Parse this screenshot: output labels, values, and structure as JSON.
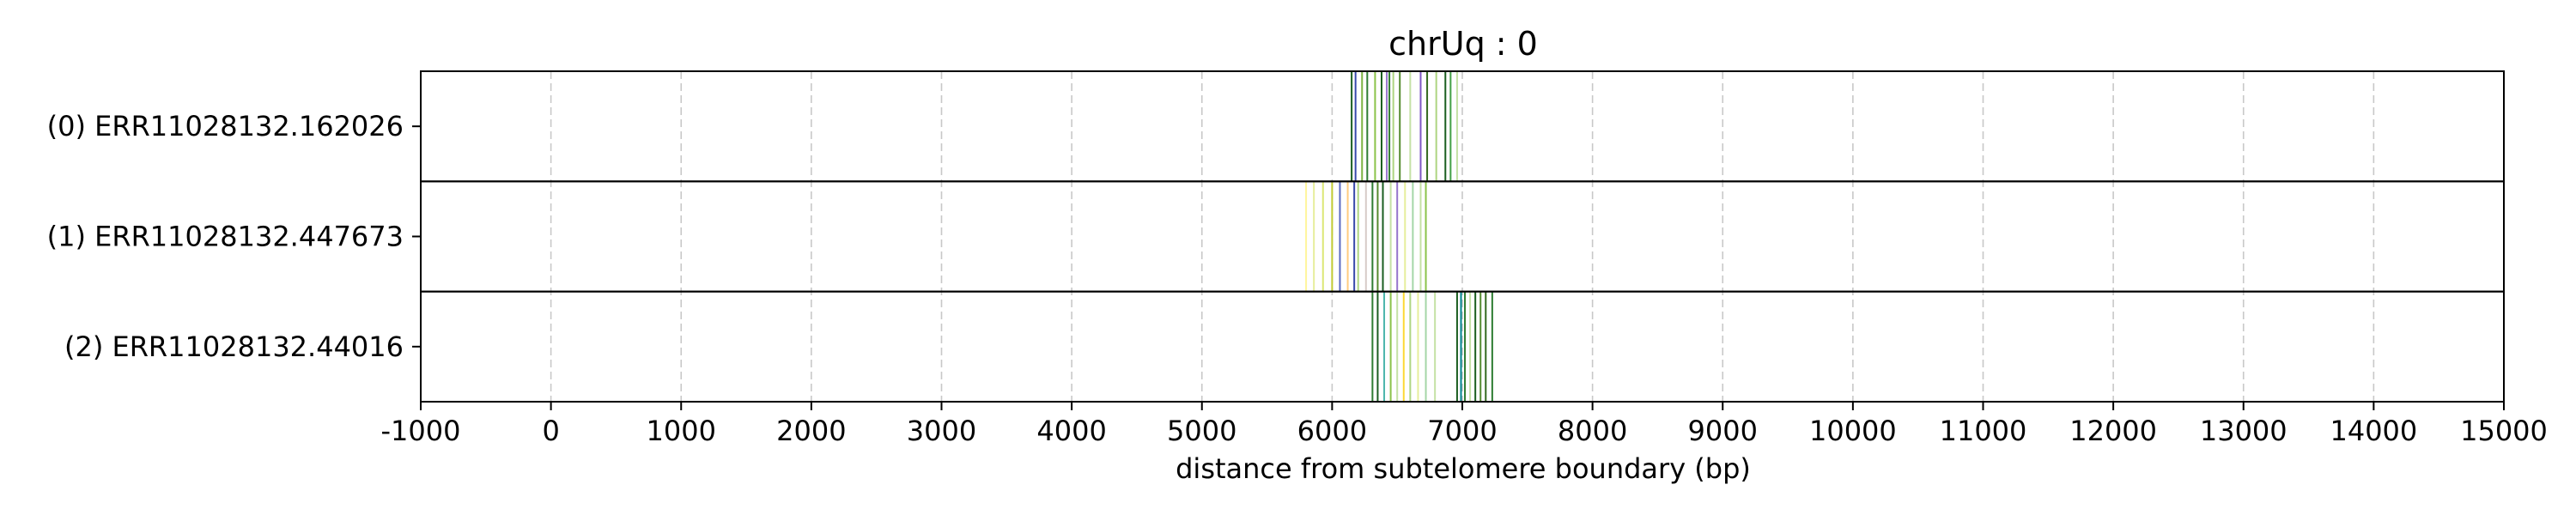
{
  "chart_data": {
    "type": "event-track",
    "title": "chrUq : 0",
    "xlabel": "distance from subtelomere boundary (bp)",
    "ylabel": "",
    "xlim": [
      -1000,
      15000
    ],
    "xticks": [
      -1000,
      0,
      1000,
      2000,
      3000,
      4000,
      5000,
      6000,
      7000,
      8000,
      9000,
      10000,
      11000,
      12000,
      13000,
      14000,
      15000
    ],
    "xtick_labels": [
      "-1000",
      "0",
      "1000",
      "2000",
      "3000",
      "4000",
      "5000",
      "6000",
      "7000",
      "8000",
      "9000",
      "10000",
      "11000",
      "12000",
      "13000",
      "14000",
      "15000"
    ],
    "grid": "vertical dashed",
    "tracks": [
      {
        "label": "(0) ERR11028132.162026",
        "events": [
          {
            "x": 6150,
            "color": "#1b5e20"
          },
          {
            "x": 6180,
            "color": "#3949ab"
          },
          {
            "x": 6230,
            "color": "#7cb342"
          },
          {
            "x": 6270,
            "color": "#2e7d32"
          },
          {
            "x": 6330,
            "color": "#8bc34a"
          },
          {
            "x": 6380,
            "color": "#1b5e20"
          },
          {
            "x": 6420,
            "color": "#9575cd"
          },
          {
            "x": 6440,
            "color": "#2e7d32"
          },
          {
            "x": 6470,
            "color": "#aed581"
          },
          {
            "x": 6520,
            "color": "#558b2f"
          },
          {
            "x": 6600,
            "color": "#c5e1a5"
          },
          {
            "x": 6680,
            "color": "#7e57c2"
          },
          {
            "x": 6730,
            "color": "#33691e"
          },
          {
            "x": 6800,
            "color": "#aed581"
          },
          {
            "x": 6870,
            "color": "#1b5e20"
          },
          {
            "x": 6910,
            "color": "#43a047"
          },
          {
            "x": 6960,
            "color": "#c5e1a5"
          }
        ]
      },
      {
        "label": "(1) ERR11028132.447673",
        "events": [
          {
            "x": 5800,
            "color": "#fff59d"
          },
          {
            "x": 5860,
            "color": "#e6ee9c"
          },
          {
            "x": 5930,
            "color": "#dce775"
          },
          {
            "x": 6000,
            "color": "#c0ca33"
          },
          {
            "x": 6060,
            "color": "#5c6bc0"
          },
          {
            "x": 6120,
            "color": "#ffcc80"
          },
          {
            "x": 6170,
            "color": "#3949ab"
          },
          {
            "x": 6200,
            "color": "#aed581"
          },
          {
            "x": 6260,
            "color": "#d7ccc8"
          },
          {
            "x": 6310,
            "color": "#2e7d32"
          },
          {
            "x": 6350,
            "color": "#558b2f"
          },
          {
            "x": 6390,
            "color": "#1b5e20"
          },
          {
            "x": 6450,
            "color": "#c5e1a5"
          },
          {
            "x": 6500,
            "color": "#9575cd"
          },
          {
            "x": 6560,
            "color": "#e6ee9c"
          },
          {
            "x": 6620,
            "color": "#a5d6a7"
          },
          {
            "x": 6680,
            "color": "#c5e1a5"
          },
          {
            "x": 6720,
            "color": "#8bc34a"
          }
        ]
      },
      {
        "label": "(2) ERR11028132.44016",
        "events": [
          {
            "x": 6310,
            "color": "#2e7d32"
          },
          {
            "x": 6350,
            "color": "#1b5e20"
          },
          {
            "x": 6400,
            "color": "#4db6ac"
          },
          {
            "x": 6450,
            "color": "#8bc34a"
          },
          {
            "x": 6500,
            "color": "#c5e1a5"
          },
          {
            "x": 6550,
            "color": "#fdd835"
          },
          {
            "x": 6600,
            "color": "#aed581"
          },
          {
            "x": 6660,
            "color": "#e6ee9c"
          },
          {
            "x": 6720,
            "color": "#a5d6a7"
          },
          {
            "x": 6790,
            "color": "#c5e1a5"
          },
          {
            "x": 6960,
            "color": "#1b5e20"
          },
          {
            "x": 6990,
            "color": "#00838f"
          },
          {
            "x": 7020,
            "color": "#2e7d32"
          },
          {
            "x": 7060,
            "color": "#c5e1a5"
          },
          {
            "x": 7100,
            "color": "#1b5e20"
          },
          {
            "x": 7140,
            "color": "#558b2f"
          },
          {
            "x": 7180,
            "color": "#33691e"
          },
          {
            "x": 7230,
            "color": "#2e7d32"
          }
        ]
      }
    ]
  }
}
